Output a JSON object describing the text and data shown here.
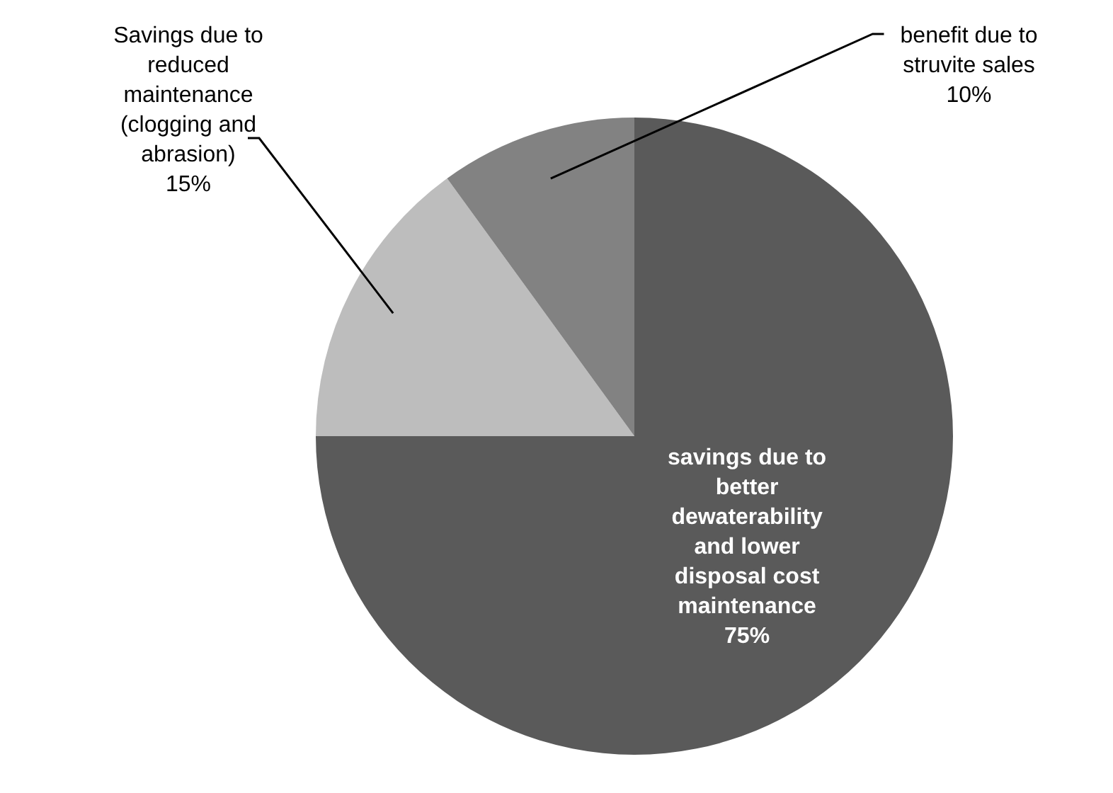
{
  "chart_data": {
    "type": "pie",
    "categories": [
      "savings due to\nbetter\ndewaterability\nand lower\ndisposal cost\nmaintenance",
      "Savings due to\nreduced\nmaintenance\n(clogging and\nabrasion)",
      "benefit due to\nstruvite sales"
    ],
    "values": [
      75,
      15,
      10
    ],
    "colors": [
      "#5a5a5a",
      "#bdbdbd",
      "#828282"
    ],
    "value_labels": [
      "75%",
      "15%",
      "10%"
    ],
    "legend": false
  }
}
